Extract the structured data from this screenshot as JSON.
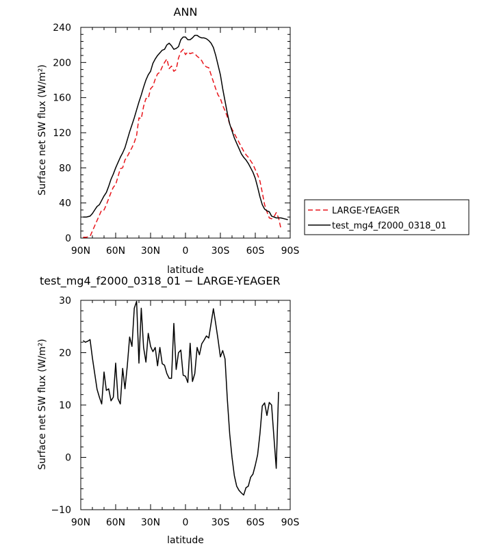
{
  "chart_data": [
    {
      "type": "line",
      "title": "ANN",
      "xlabel": "latitude",
      "ylabel": "Surface net SW flux (W/m²)",
      "xlim": [
        90,
        -90
      ],
      "ylim": [
        0,
        240
      ],
      "xticks": [
        90,
        60,
        30,
        0,
        -30,
        -60,
        -90
      ],
      "xtick_labels": [
        "90N",
        "60N",
        "30N",
        "0",
        "30S",
        "60S",
        "90S"
      ],
      "yticks": [
        0,
        40,
        80,
        120,
        160,
        200,
        240
      ],
      "ytick_labels": [
        "0",
        "40",
        "80",
        "120",
        "160",
        "200",
        "240"
      ],
      "grid": false,
      "legend_position": "right",
      "series": [
        {
          "name": "LARGE-YEAGER",
          "color": "#e8141a",
          "dash": "dashed",
          "x": [
            88,
            85,
            82,
            80,
            78,
            76,
            74,
            72,
            70,
            68,
            66,
            64,
            62,
            60,
            58,
            56,
            54,
            52,
            50,
            48,
            46,
            44,
            42,
            40,
            38,
            36,
            34,
            32,
            30,
            28,
            26,
            24,
            22,
            20,
            18,
            16,
            14,
            12,
            10,
            8,
            6,
            4,
            2,
            0,
            -2,
            -4,
            -6,
            -8,
            -10,
            -12,
            -14,
            -16,
            -18,
            -20,
            -22,
            -24,
            -26,
            -28,
            -30,
            -32,
            -34,
            -36,
            -38,
            -40,
            -42,
            -44,
            -46,
            -48,
            -50,
            -52,
            -54,
            -56,
            -58,
            -60,
            -62,
            -64,
            -66,
            -68,
            -70,
            -72,
            -74,
            -76,
            -78,
            -80,
            -82
          ],
          "y": [
            1,
            1,
            2,
            8,
            14,
            20,
            26,
            32,
            32,
            38,
            45,
            52,
            58,
            61,
            70,
            79,
            80,
            89,
            93,
            98,
            103,
            109,
            117,
            137,
            136,
            150,
            159,
            159,
            170,
            173,
            181,
            187,
            189,
            195,
            200,
            204,
            193,
            196,
            190,
            192,
            205,
            212,
            215,
            209,
            212,
            210,
            211,
            210,
            207,
            205,
            202,
            197,
            195,
            194,
            186,
            178,
            170,
            163,
            159,
            151,
            145,
            138,
            130,
            124,
            119,
            114,
            109,
            104,
            99,
            95,
            92,
            88,
            84,
            78,
            72,
            65,
            52,
            38,
            30,
            23,
            22,
            24,
            29,
            23,
            11
          ]
        },
        {
          "name": "test_mg4_f2000_0318_01",
          "color": "#000000",
          "dash": "solid",
          "x": [
            88,
            85,
            82,
            80,
            78,
            76,
            74,
            72,
            70,
            68,
            66,
            64,
            62,
            60,
            58,
            56,
            54,
            52,
            50,
            48,
            46,
            44,
            42,
            40,
            38,
            36,
            34,
            32,
            30,
            28,
            26,
            24,
            22,
            20,
            18,
            16,
            14,
            12,
            10,
            8,
            6,
            4,
            2,
            0,
            -2,
            -4,
            -6,
            -8,
            -10,
            -12,
            -14,
            -16,
            -18,
            -20,
            -22,
            -24,
            -26,
            -28,
            -30,
            -32,
            -34,
            -36,
            -38,
            -40,
            -42,
            -44,
            -46,
            -48,
            -50,
            -52,
            -54,
            -56,
            -58,
            -60,
            -62,
            -64,
            -66,
            -68,
            -70,
            -72,
            -74,
            -76,
            -78,
            -80,
            -82,
            -85,
            -88
          ],
          "y": [
            24,
            24,
            25,
            28,
            32,
            36,
            38,
            43,
            48,
            52,
            59,
            67,
            73,
            80,
            86,
            92,
            97,
            103,
            112,
            121,
            129,
            137,
            146,
            155,
            163,
            172,
            180,
            186,
            190,
            199,
            204,
            208,
            211,
            214,
            215,
            220,
            222,
            219,
            215,
            216,
            218,
            226,
            229,
            229,
            226,
            226,
            228,
            231,
            231,
            229,
            228,
            228,
            227,
            225,
            222,
            217,
            208,
            197,
            186,
            170,
            156,
            142,
            130,
            122,
            114,
            108,
            102,
            96,
            92,
            89,
            85,
            80,
            75,
            68,
            58,
            47,
            38,
            33,
            31,
            30,
            25,
            24,
            23,
            23,
            23,
            22,
            21
          ]
        }
      ]
    },
    {
      "type": "line",
      "title": "test_mg4_f2000_0318_01 − LARGE-YEAGER",
      "xlabel": "latitude",
      "ylabel": "Surface net SW flux (W/m²)",
      "xlim": [
        90,
        -90
      ],
      "ylim": [
        -10,
        30
      ],
      "xticks": [
        90,
        60,
        30,
        0,
        -30,
        -60,
        -90
      ],
      "xtick_labels": [
        "90N",
        "60N",
        "30N",
        "0",
        "30S",
        "60S",
        "90S"
      ],
      "yticks": [
        -10,
        0,
        10,
        20,
        30
      ],
      "ytick_labels": [
        "−10",
        "0",
        "10",
        "20",
        "30"
      ],
      "grid": false,
      "series": [
        {
          "color": "#000000",
          "dash": "solid",
          "x": [
            88,
            86,
            84,
            82,
            80,
            78,
            76,
            74,
            72,
            70,
            68,
            66,
            64,
            62,
            60,
            58,
            56,
            54,
            52,
            50,
            48,
            46,
            44,
            42,
            40,
            38,
            36,
            34,
            32,
            30,
            28,
            26,
            24,
            22,
            20,
            18,
            16,
            14,
            12,
            10,
            8,
            6,
            4,
            2,
            0,
            -2,
            -4,
            -6,
            -8,
            -10,
            -12,
            -14,
            -16,
            -18,
            -20,
            -22,
            -24,
            -26,
            -28,
            -30,
            -32,
            -34,
            -36,
            -38,
            -40,
            -42,
            -44,
            -46,
            -48,
            -50,
            -52,
            -54,
            -56,
            -58,
            -60,
            -62,
            -64,
            -66,
            -68,
            -70,
            -72,
            -74,
            -76,
            -78,
            -80
          ],
          "y": [
            22.3,
            22,
            22.2,
            22.5,
            19,
            16,
            13,
            11.5,
            10.2,
            16.3,
            12.8,
            13.1,
            10.8,
            11.5,
            18,
            11.2,
            10.2,
            17,
            13.1,
            17.5,
            23,
            21.2,
            28.5,
            29.8,
            18,
            28.5,
            21,
            18.2,
            23.7,
            21.2,
            20.2,
            21,
            17.5,
            21,
            17.9,
            17.6,
            16,
            15.1,
            15.1,
            25.6,
            16.8,
            20,
            20.5,
            15.7,
            15.5,
            14.3,
            21.8,
            14.5,
            16,
            21,
            19.6,
            21.7,
            22.4,
            23.2,
            22.8,
            25.6,
            28.4,
            25.5,
            22.5,
            19.2,
            20.4,
            18.8,
            11,
            4.5,
            0,
            -3.5,
            -5.5,
            -6.3,
            -6.8,
            -7.2,
            -5.8,
            -5.5,
            -3.8,
            -3.2,
            -1.5,
            0.5,
            4.5,
            9.8,
            10.4,
            8,
            10.5,
            10,
            3.9,
            -2.1,
            12.5
          ]
        }
      ]
    }
  ]
}
